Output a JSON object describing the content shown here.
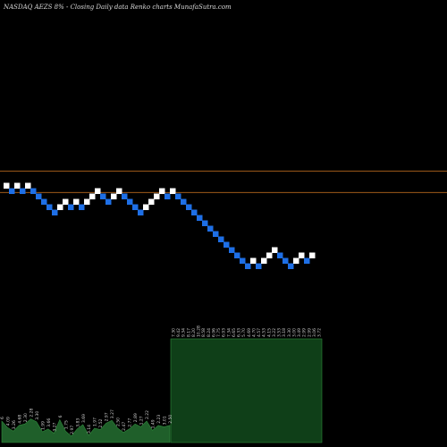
{
  "header": {
    "title": "NASDAQ AEZS 8% - Closing Daily data Renko charts MunafaSutra.com"
  },
  "chart_data": {
    "type": "renko",
    "title": "NASDAQ AEZS 8% - Closing Daily data Renko charts MunafaSutra.com",
    "box_size_pct": 8,
    "colors": {
      "background": "#000000",
      "up_brick": "#ffffff",
      "down_brick": "#1e6fe6",
      "reference_line": "#b8681e",
      "volume_fill_left": "#1f5f2a",
      "volume_fill_right": "#0f3f18",
      "volume_stroke": "#2f8a3c"
    },
    "reference_lines": [
      {
        "name": "upper",
        "level": 10
      },
      {
        "name": "lower",
        "level": 8
      }
    ],
    "bricks": [
      {
        "dir": "up",
        "level": 8.9
      },
      {
        "dir": "down",
        "level": 8.4
      },
      {
        "dir": "up",
        "level": 8.9
      },
      {
        "dir": "down",
        "level": 8.4
      },
      {
        "dir": "up",
        "level": 8.9
      },
      {
        "dir": "down",
        "level": 8.4
      },
      {
        "dir": "down",
        "level": 7.9
      },
      {
        "dir": "down",
        "level": 7.4
      },
      {
        "dir": "down",
        "level": 6.9
      },
      {
        "dir": "down",
        "level": 6.4
      },
      {
        "dir": "up",
        "level": 6.9
      },
      {
        "dir": "up",
        "level": 7.4
      },
      {
        "dir": "down",
        "level": 6.9
      },
      {
        "dir": "up",
        "level": 7.4
      },
      {
        "dir": "down",
        "level": 6.9
      },
      {
        "dir": "up",
        "level": 7.4
      },
      {
        "dir": "up",
        "level": 7.9
      },
      {
        "dir": "up",
        "level": 8.4
      },
      {
        "dir": "down",
        "level": 7.9
      },
      {
        "dir": "down",
        "level": 7.4
      },
      {
        "dir": "up",
        "level": 7.9
      },
      {
        "dir": "up",
        "level": 8.4
      },
      {
        "dir": "down",
        "level": 7.9
      },
      {
        "dir": "down",
        "level": 7.4
      },
      {
        "dir": "down",
        "level": 6.9
      },
      {
        "dir": "down",
        "level": 6.4
      },
      {
        "dir": "up",
        "level": 6.9
      },
      {
        "dir": "up",
        "level": 7.4
      },
      {
        "dir": "up",
        "level": 7.9
      },
      {
        "dir": "up",
        "level": 8.4
      },
      {
        "dir": "down",
        "level": 7.9
      },
      {
        "dir": "up",
        "level": 8.4
      },
      {
        "dir": "down",
        "level": 7.9
      },
      {
        "dir": "down",
        "level": 7.4
      },
      {
        "dir": "down",
        "level": 6.9
      },
      {
        "dir": "down",
        "level": 6.4
      },
      {
        "dir": "down",
        "level": 5.9
      },
      {
        "dir": "down",
        "level": 5.4
      },
      {
        "dir": "down",
        "level": 4.9
      },
      {
        "dir": "down",
        "level": 4.4
      },
      {
        "dir": "down",
        "level": 3.9
      },
      {
        "dir": "down",
        "level": 3.4
      },
      {
        "dir": "down",
        "level": 2.9
      },
      {
        "dir": "down",
        "level": 2.4
      },
      {
        "dir": "down",
        "level": 1.9
      },
      {
        "dir": "down",
        "level": 1.4
      },
      {
        "dir": "up",
        "level": 1.9
      },
      {
        "dir": "down",
        "level": 1.4
      },
      {
        "dir": "up",
        "level": 1.9
      },
      {
        "dir": "up",
        "level": 2.4
      },
      {
        "dir": "up",
        "level": 2.9
      },
      {
        "dir": "down",
        "level": 2.4
      },
      {
        "dir": "down",
        "level": 1.9
      },
      {
        "dir": "down",
        "level": 1.4
      },
      {
        "dir": "up",
        "level": 1.9
      },
      {
        "dir": "up",
        "level": 2.4
      },
      {
        "dir": "down",
        "level": 1.9
      },
      {
        "dir": "up",
        "level": 2.4
      }
    ],
    "volume": {
      "left": [
        {
          "label": "6",
          "value": 3.0
        },
        {
          "label": "4.09",
          "value": 2.1
        },
        {
          "label": "3.26",
          "value": 1.6
        },
        {
          "label": "4.68",
          "value": 2.4
        },
        {
          "label": "2.30",
          "value": 2.6
        },
        {
          "label": "2.28",
          "value": 3.3
        },
        {
          "label": "3.30",
          "value": 2.9
        },
        {
          "label": "1.99",
          "value": 1.5
        },
        {
          "label": "3.66",
          "value": 1.9
        },
        {
          "label": "3.27",
          "value": 1.3
        },
        {
          "label": "6",
          "value": 3.2
        },
        {
          "label": "1.75",
          "value": 1.6
        },
        {
          "label": "2.97",
          "value": 0.9
        },
        {
          "label": "3.83",
          "value": 1.9
        },
        {
          "label": "3.69",
          "value": 2.5
        },
        {
          "label": "3.14",
          "value": 1.0
        },
        {
          "label": "1.97",
          "value": 2.0
        },
        {
          "label": "2.52",
          "value": 1.8
        },
        {
          "label": "2.97",
          "value": 2.7
        },
        {
          "label": "3.27",
          "value": 3.1
        },
        {
          "label": "2.50",
          "value": 2.0
        },
        {
          "label": "2.47",
          "value": 1.4
        },
        {
          "label": "2.77",
          "value": 1.9
        },
        {
          "label": "2.89",
          "value": 2.6
        },
        {
          "label": "1.27",
          "value": 2.2
        },
        {
          "label": "2.22",
          "value": 3.0
        },
        {
          "label": "1.49",
          "value": 1.7
        },
        {
          "label": "2.23",
          "value": 2.4
        },
        {
          "label": "3.01",
          "value": 2.2
        },
        {
          "label": "2.50",
          "value": 2.4
        }
      ],
      "right": [
        {
          "label": "7.30",
          "value": 14.5
        },
        {
          "label": "9.42",
          "value": 14.5
        },
        {
          "label": "9.34",
          "value": 14.5
        },
        {
          "label": "8.17",
          "value": 14.5
        },
        {
          "label": "8.20",
          "value": 14.5
        },
        {
          "label": "10.28",
          "value": 14.5
        },
        {
          "label": "8.58",
          "value": 14.5
        },
        {
          "label": "8.24",
          "value": 14.5
        },
        {
          "label": "6.96",
          "value": 14.5
        },
        {
          "label": "7.75",
          "value": 14.5
        },
        {
          "label": "6.93",
          "value": 14.5
        },
        {
          "label": "7.34",
          "value": 14.5
        },
        {
          "label": "6.65",
          "value": 14.5
        },
        {
          "label": "6.33",
          "value": 14.5
        },
        {
          "label": "5.70",
          "value": 14.5
        },
        {
          "label": "4.69",
          "value": 14.5
        },
        {
          "label": "4.70",
          "value": 14.5
        },
        {
          "label": "4.57",
          "value": 14.5
        },
        {
          "label": "4.53",
          "value": 14.5
        },
        {
          "label": "4.15",
          "value": 14.5
        },
        {
          "label": "3.22",
          "value": 14.5
        },
        {
          "label": "3.53",
          "value": 14.5
        },
        {
          "label": "3.18",
          "value": 14.5
        },
        {
          "label": "3.30",
          "value": 14.5
        },
        {
          "label": "3.00",
          "value": 14.5
        },
        {
          "label": "3.49",
          "value": 14.5
        },
        {
          "label": "2.99",
          "value": 14.5
        },
        {
          "label": "2.99",
          "value": 14.5
        },
        {
          "label": "3.06",
          "value": 14.5
        },
        {
          "label": "3.72",
          "value": 14.5
        }
      ]
    }
  }
}
